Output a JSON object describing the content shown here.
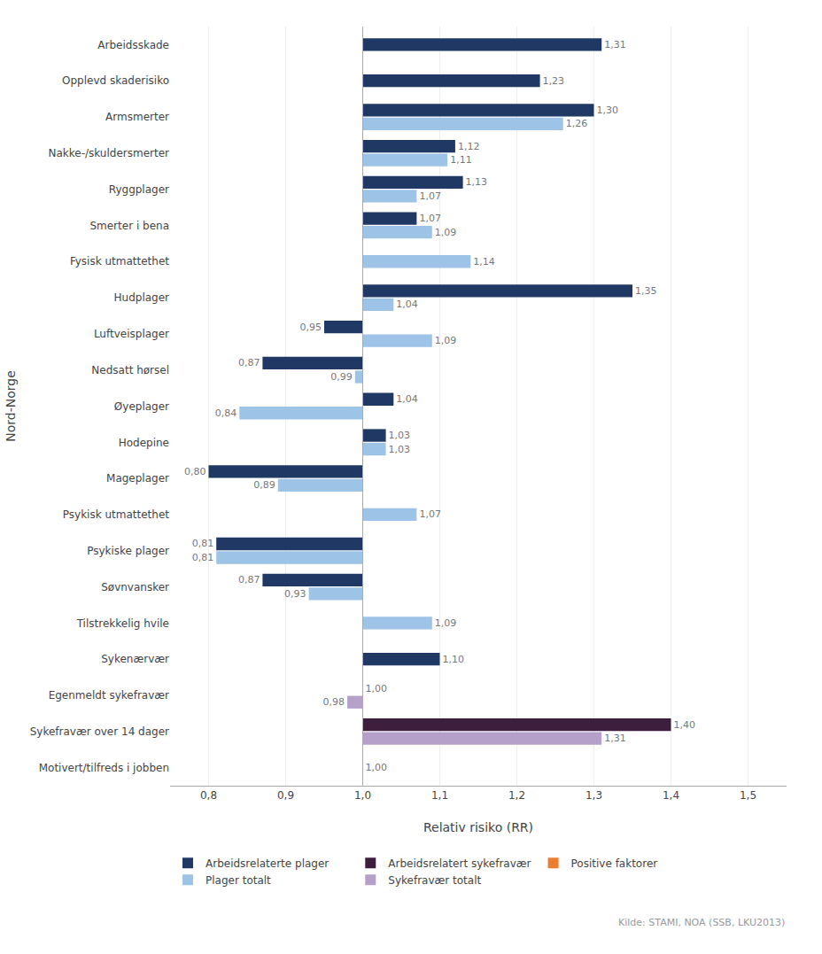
{
  "chart_data": {
    "type": "bar",
    "orientation": "horizontal",
    "base": 1.0,
    "categories": [
      "Arbeidsskade",
      "Opplevd skaderisiko",
      "Armsmerter",
      "Nakke-/skuldersmerter",
      "Ryggplager",
      "Smerter i bena",
      "Fysisk utmattethet",
      "Hudplager",
      "Luftveisplager",
      "Nedsatt hørsel",
      "Øyeplager",
      "Hodepine",
      "Mageplager",
      "Psykisk utmattethet",
      "Psykiske plager",
      "Søvnvansker",
      "Tilstrekkelig hvile",
      "Sykenærvær",
      "Egenmeldt sykefravær",
      "Sykefravær over 14 dager",
      "Motivert/tilfreds i jobben"
    ],
    "series": [
      {
        "name": "Arbeidsrelaterte plager",
        "color": "#1f3864",
        "values": [
          1.31,
          1.23,
          1.3,
          1.12,
          1.13,
          1.07,
          null,
          1.35,
          0.95,
          0.87,
          1.04,
          1.03,
          0.8,
          null,
          0.81,
          0.87,
          null,
          1.1,
          1.0,
          null,
          null
        ],
        "value_labels": [
          "1,31",
          "1,23",
          "1,30",
          "1,12",
          "1,13",
          "1,07",
          null,
          "1,35",
          "0,95",
          "0,87",
          "1,04",
          "1,03",
          "0,80",
          null,
          "0,81",
          "0,87",
          null,
          "1,10",
          "1,00",
          null,
          null
        ]
      },
      {
        "name": "Arbeidsrelatert sykefravær",
        "color": "#3d1f3d",
        "values": [
          null,
          null,
          null,
          null,
          null,
          null,
          null,
          null,
          null,
          null,
          null,
          null,
          null,
          null,
          null,
          null,
          null,
          null,
          null,
          1.4,
          null
        ],
        "value_labels": [
          null,
          null,
          null,
          null,
          null,
          null,
          null,
          null,
          null,
          null,
          null,
          null,
          null,
          null,
          null,
          null,
          null,
          null,
          null,
          "1,40",
          null
        ]
      },
      {
        "name": "Positive faktorer",
        "color": "#ed7d31",
        "values": [
          null,
          null,
          null,
          null,
          null,
          null,
          null,
          null,
          null,
          null,
          null,
          null,
          null,
          null,
          null,
          null,
          null,
          null,
          null,
          null,
          null
        ],
        "value_labels": [
          null,
          null,
          null,
          null,
          null,
          null,
          null,
          null,
          null,
          null,
          null,
          null,
          null,
          null,
          null,
          null,
          null,
          null,
          null,
          null,
          null
        ]
      },
      {
        "name": "Plager totalt",
        "color": "#9dc3e6",
        "values": [
          null,
          null,
          1.26,
          1.11,
          1.07,
          1.09,
          1.14,
          1.04,
          1.09,
          0.99,
          0.84,
          1.03,
          0.89,
          1.07,
          0.81,
          0.93,
          1.09,
          null,
          null,
          null,
          null
        ],
        "value_labels": [
          null,
          null,
          "1,26",
          "1,11",
          "1,07",
          "1,09",
          "1,14",
          "1,04",
          "1,09",
          "0,99",
          "0,84",
          "1,03",
          "0,89",
          "1,07",
          "0,81",
          "0,93",
          "1,09",
          null,
          null,
          null,
          null
        ]
      },
      {
        "name": "Sykefravær totalt",
        "color": "#b4a0c8",
        "values": [
          null,
          null,
          null,
          null,
          null,
          null,
          null,
          null,
          null,
          null,
          null,
          null,
          null,
          null,
          null,
          null,
          null,
          null,
          0.98,
          1.31,
          1.0
        ],
        "value_labels": [
          null,
          null,
          null,
          null,
          null,
          null,
          null,
          null,
          null,
          null,
          null,
          null,
          null,
          null,
          null,
          null,
          null,
          null,
          "0,98",
          "1,31",
          "1,00"
        ]
      }
    ],
    "xlabel": "Relativ risiko (RR)",
    "ylabel": "Nord-Norge",
    "xlim": [
      0.75,
      1.55
    ],
    "xticks": [
      {
        "value": 0.8,
        "label": "0,8"
      },
      {
        "value": 0.9,
        "label": "0,9"
      },
      {
        "value": 1.0,
        "label": "1,0"
      },
      {
        "value": 1.1,
        "label": "1,1"
      },
      {
        "value": 1.2,
        "label": "1,2"
      },
      {
        "value": 1.3,
        "label": "1,3"
      },
      {
        "value": 1.4,
        "label": "1,4"
      },
      {
        "value": 1.5,
        "label": "1,5"
      }
    ],
    "grid": true,
    "data_labels": true,
    "legend": "bottom",
    "annotations": [
      {
        "text": "Kilde: STAMI, NOA (SSB, LKU2013)"
      }
    ]
  }
}
